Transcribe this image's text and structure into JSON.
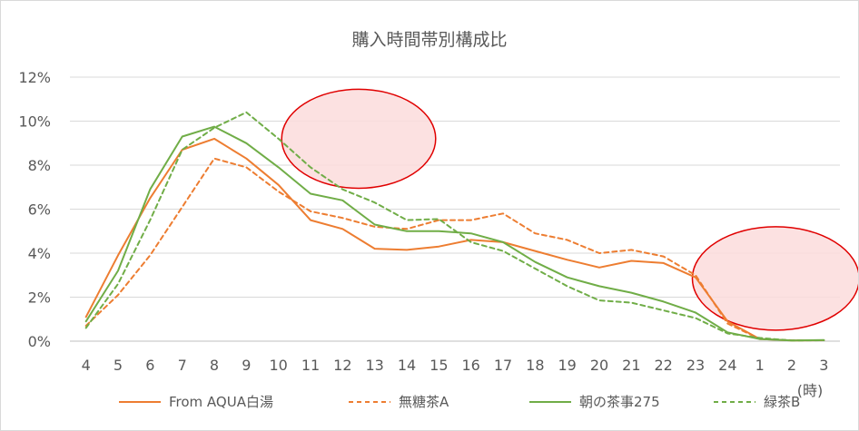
{
  "chart_data": {
    "type": "line",
    "title": "購入時間帯別構成比",
    "xlabel": "",
    "ylabel": "",
    "unit_label": "(時)",
    "ylim": [
      0,
      0.12
    ],
    "y_ticks": [
      {
        "value": 0,
        "label": "0%"
      },
      {
        "value": 0.02,
        "label": "2%"
      },
      {
        "value": 0.04,
        "label": "4%"
      },
      {
        "value": 0.06,
        "label": "6%"
      },
      {
        "value": 0.08,
        "label": "8%"
      },
      {
        "value": 0.1,
        "label": "10%"
      },
      {
        "value": 0.12,
        "label": "12%"
      }
    ],
    "categories": [
      "4",
      "5",
      "6",
      "7",
      "8",
      "9",
      "10",
      "11",
      "12",
      "13",
      "14",
      "15",
      "16",
      "17",
      "18",
      "19",
      "20",
      "21",
      "22",
      "23",
      "24",
      "1",
      "2",
      "3"
    ],
    "series": [
      {
        "name": "From AQUA白湯",
        "color": "#ED7D31",
        "dash": "solid",
        "values": [
          0.011,
          0.039,
          0.065,
          0.087,
          0.092,
          0.083,
          0.071,
          0.055,
          0.051,
          0.042,
          0.0415,
          0.043,
          0.046,
          0.045,
          0.041,
          0.037,
          0.0335,
          0.0365,
          0.0355,
          0.029,
          0.009,
          0.001,
          0.0003,
          0.0004
        ]
      },
      {
        "name": "無糖茶A",
        "color": "#ED7D31",
        "dash": "dashed",
        "values": [
          0.007,
          0.021,
          0.039,
          0.061,
          0.083,
          0.079,
          0.068,
          0.059,
          0.056,
          0.052,
          0.051,
          0.055,
          0.055,
          0.058,
          0.049,
          0.046,
          0.04,
          0.0415,
          0.0385,
          0.03,
          0.008,
          0.001,
          0.0004,
          0.0004
        ]
      },
      {
        "name": "朝の茶事275",
        "color": "#70AD47",
        "dash": "solid",
        "values": [
          0.009,
          0.032,
          0.069,
          0.093,
          0.0975,
          0.09,
          0.079,
          0.067,
          0.064,
          0.053,
          0.05,
          0.05,
          0.049,
          0.045,
          0.036,
          0.029,
          0.025,
          0.022,
          0.018,
          0.013,
          0.004,
          0.001,
          0.0003,
          0.0005
        ]
      },
      {
        "name": "緑茶B",
        "color": "#70AD47",
        "dash": "dashed",
        "values": [
          0.006,
          0.026,
          0.055,
          0.087,
          0.097,
          0.104,
          0.092,
          0.079,
          0.069,
          0.063,
          0.055,
          0.0555,
          0.045,
          0.041,
          0.033,
          0.025,
          0.0185,
          0.0175,
          0.014,
          0.0105,
          0.0035,
          0.0015,
          0.0003,
          0.0004
        ]
      }
    ],
    "highlights": [
      {
        "center_x": 8.5,
        "center_y": 0.092,
        "radius_x": 2.4,
        "radius_y": 0.0225
      },
      {
        "center_x": 21.5,
        "center_y": 0.0285,
        "radius_x": 2.6,
        "radius_y": 0.0235
      }
    ],
    "highlight_fill": "#fbdcdc",
    "highlight_stroke": "#e00000"
  }
}
